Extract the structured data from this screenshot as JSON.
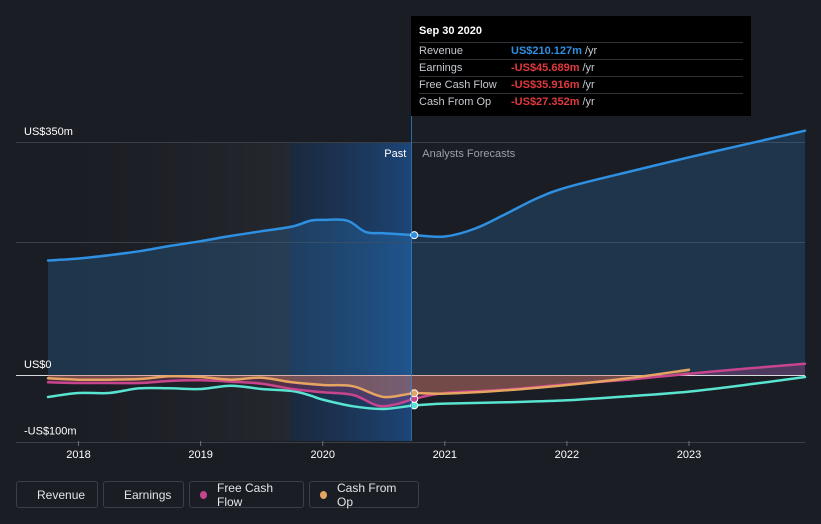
{
  "chart_data": {
    "type": "line",
    "y_axis": {
      "ylim": [
        -100,
        350
      ],
      "labels": [
        "US$350m",
        "US$0",
        "-US$100m"
      ],
      "unit": "US$m"
    },
    "x_axis": {
      "range": [
        2017.75,
        2023.95
      ],
      "ticks": [
        "2018",
        "2019",
        "2020",
        "2021",
        "2022",
        "2023"
      ]
    },
    "divider": {
      "x": 2020.75,
      "past_label": "Past",
      "forecast_label": "Analysts Forecasts"
    },
    "series": [
      {
        "name": "Revenue",
        "color": "#2f8fe0",
        "filled": true,
        "points": [
          [
            2017.75,
            172
          ],
          [
            2018.0,
            175
          ],
          [
            2018.25,
            180
          ],
          [
            2018.5,
            186
          ],
          [
            2018.75,
            194
          ],
          [
            2019.0,
            201
          ],
          [
            2019.25,
            209
          ],
          [
            2019.5,
            216
          ],
          [
            2019.75,
            223
          ],
          [
            2019.9,
            232
          ],
          [
            2020.0,
            233
          ],
          [
            2020.2,
            232
          ],
          [
            2020.35,
            215
          ],
          [
            2020.5,
            213
          ],
          [
            2020.75,
            210.127
          ],
          [
            2021.0,
            208
          ],
          [
            2021.25,
            220
          ],
          [
            2021.5,
            242
          ],
          [
            2021.75,
            265
          ],
          [
            2022.0,
            282
          ],
          [
            2022.5,
            305
          ],
          [
            2023.0,
            327
          ],
          [
            2023.5,
            348
          ],
          [
            2023.95,
            367
          ]
        ]
      },
      {
        "name": "Earnings",
        "color": "#58e4d0",
        "filled": false,
        "points": [
          [
            2017.75,
            -33
          ],
          [
            2018.0,
            -27
          ],
          [
            2018.25,
            -27
          ],
          [
            2018.5,
            -20
          ],
          [
            2018.75,
            -20
          ],
          [
            2019.0,
            -21
          ],
          [
            2019.25,
            -16
          ],
          [
            2019.5,
            -21
          ],
          [
            2019.75,
            -24
          ],
          [
            2019.9,
            -31
          ],
          [
            2020.0,
            -37
          ],
          [
            2020.25,
            -47
          ],
          [
            2020.5,
            -51
          ],
          [
            2020.75,
            -45.689
          ],
          [
            2021.0,
            -43
          ],
          [
            2021.5,
            -41
          ],
          [
            2022.0,
            -38
          ],
          [
            2022.5,
            -32
          ],
          [
            2023.0,
            -25
          ],
          [
            2023.5,
            -14
          ],
          [
            2023.95,
            -3
          ]
        ]
      },
      {
        "name": "Free Cash Flow",
        "color": "#c6458c",
        "filled": true,
        "points": [
          [
            2017.75,
            -11
          ],
          [
            2018.0,
            -12
          ],
          [
            2018.25,
            -12
          ],
          [
            2018.5,
            -12
          ],
          [
            2018.75,
            -9
          ],
          [
            2019.0,
            -8
          ],
          [
            2019.25,
            -10
          ],
          [
            2019.5,
            -13
          ],
          [
            2019.75,
            -21
          ],
          [
            2020.0,
            -26
          ],
          [
            2020.25,
            -30
          ],
          [
            2020.45,
            -46
          ],
          [
            2020.6,
            -44
          ],
          [
            2020.75,
            -35.916
          ],
          [
            2021.0,
            -27
          ],
          [
            2021.5,
            -22
          ],
          [
            2022.0,
            -14
          ],
          [
            2022.5,
            -7
          ],
          [
            2023.0,
            2
          ],
          [
            2023.5,
            10
          ],
          [
            2023.95,
            17
          ]
        ]
      },
      {
        "name": "Cash From Op",
        "color": "#e6a462",
        "filled": true,
        "points": [
          [
            2017.75,
            -5
          ],
          [
            2018.0,
            -7
          ],
          [
            2018.25,
            -7
          ],
          [
            2018.5,
            -6
          ],
          [
            2018.75,
            -2
          ],
          [
            2019.0,
            -3
          ],
          [
            2019.25,
            -7
          ],
          [
            2019.5,
            -4
          ],
          [
            2019.75,
            -11
          ],
          [
            2020.0,
            -15
          ],
          [
            2020.25,
            -17
          ],
          [
            2020.5,
            -33
          ],
          [
            2020.75,
            -27.352
          ],
          [
            2021.0,
            -28
          ],
          [
            2021.5,
            -23
          ],
          [
            2022.0,
            -15
          ],
          [
            2022.5,
            -5
          ],
          [
            2023.0,
            8
          ]
        ]
      }
    ],
    "tooltip": {
      "date": "Sep 30 2020",
      "rows": [
        {
          "label": "Revenue",
          "value": "US$210.127m",
          "unit": "/yr",
          "color": "#2f8fe0"
        },
        {
          "label": "Earnings",
          "value": "-US$45.689m",
          "unit": "/yr",
          "color": "#e0393e"
        },
        {
          "label": "Free Cash Flow",
          "value": "-US$35.916m",
          "unit": "/yr",
          "color": "#e0393e"
        },
        {
          "label": "Cash From Op",
          "value": "-US$27.352m",
          "unit": "/yr",
          "color": "#e0393e"
        }
      ]
    }
  },
  "legend": [
    {
      "label": "Revenue",
      "color": "#2f8fe0"
    },
    {
      "label": "Earnings",
      "color": "#58e4d0"
    },
    {
      "label": "Free Cash Flow",
      "color": "#c6458c"
    },
    {
      "label": "Cash From Op",
      "color": "#e6a462"
    }
  ]
}
